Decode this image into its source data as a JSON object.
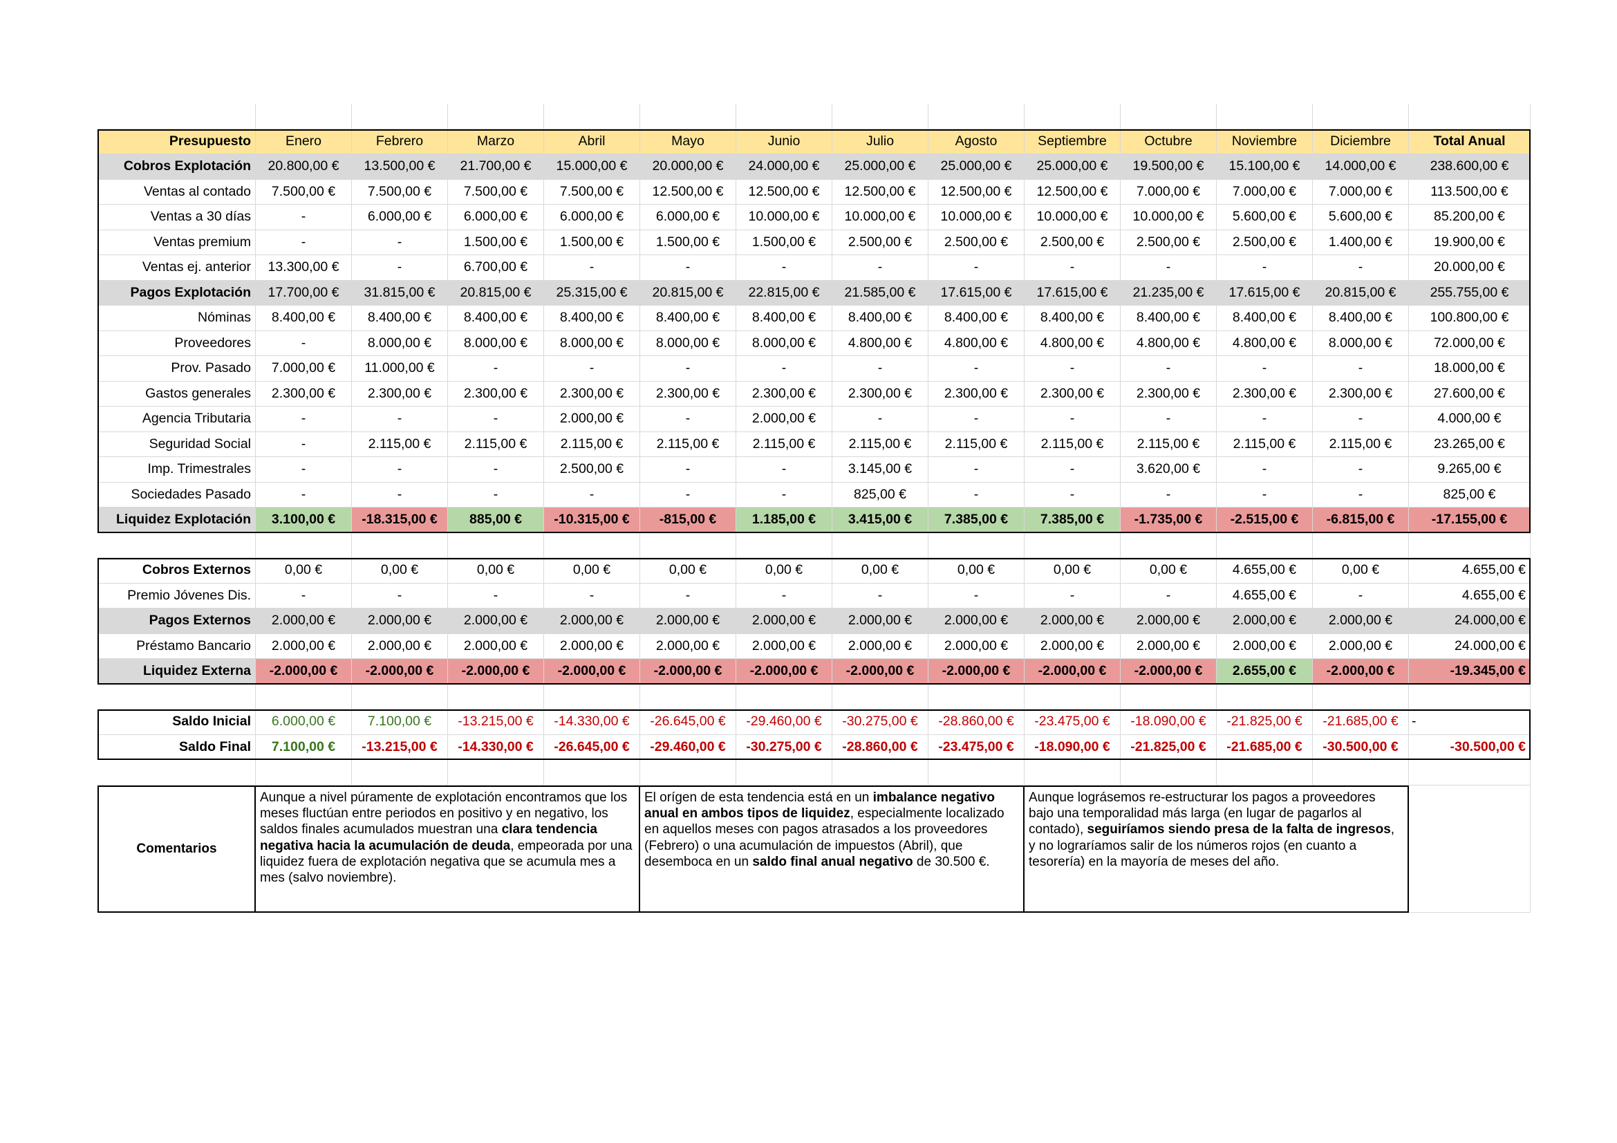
{
  "months": [
    "Enero",
    "Febrero",
    "Marzo",
    "Abril",
    "Mayo",
    "Junio",
    "Julio",
    "Agosto",
    "Septiembre",
    "Octubre",
    "Noviembre",
    "Diciembre"
  ],
  "header": {
    "label": "Presupuesto",
    "total_label": "Total Anual"
  },
  "explotacion": [
    {
      "key": "cobros",
      "label": "Cobros Explotación",
      "style": "section",
      "values": [
        "20.800,00 €",
        "13.500,00 €",
        "21.700,00 €",
        "15.000,00 €",
        "20.000,00 €",
        "24.000,00 €",
        "25.000,00 €",
        "25.000,00 €",
        "25.000,00 €",
        "19.500,00 €",
        "15.100,00 €",
        "14.000,00 €"
      ],
      "total": "238.600,00 €"
    },
    {
      "key": "ventas-contado",
      "label": "Ventas al contado",
      "style": "item",
      "values": [
        "7.500,00 €",
        "7.500,00 €",
        "7.500,00 €",
        "7.500,00 €",
        "12.500,00 €",
        "12.500,00 €",
        "12.500,00 €",
        "12.500,00 €",
        "12.500,00 €",
        "7.000,00 €",
        "7.000,00 €",
        "7.000,00 €"
      ],
      "total": "113.500,00 €"
    },
    {
      "key": "ventas-30",
      "label": "Ventas a 30 días",
      "style": "item",
      "values": [
        "-",
        "6.000,00 €",
        "6.000,00 €",
        "6.000,00 €",
        "6.000,00 €",
        "10.000,00 €",
        "10.000,00 €",
        "10.000,00 €",
        "10.000,00 €",
        "10.000,00 €",
        "5.600,00 €",
        "5.600,00 €"
      ],
      "total": "85.200,00 €"
    },
    {
      "key": "ventas-premium",
      "label": "Ventas premium",
      "style": "item",
      "values": [
        "-",
        "-",
        "1.500,00 €",
        "1.500,00 €",
        "1.500,00 €",
        "1.500,00 €",
        "2.500,00 €",
        "2.500,00 €",
        "2.500,00 €",
        "2.500,00 €",
        "2.500,00 €",
        "1.400,00 €"
      ],
      "total": "19.900,00 €"
    },
    {
      "key": "ventas-anterior",
      "label": "Ventas ej. anterior",
      "style": "item",
      "values": [
        "13.300,00 €",
        "-",
        "6.700,00 €",
        "-",
        "-",
        "-",
        "-",
        "-",
        "-",
        "-",
        "-",
        "-"
      ],
      "total": "20.000,00 €"
    },
    {
      "key": "pagos",
      "label": "Pagos Explotación",
      "style": "section",
      "values": [
        "17.700,00 €",
        "31.815,00 €",
        "20.815,00 €",
        "25.315,00 €",
        "20.815,00 €",
        "22.815,00 €",
        "21.585,00 €",
        "17.615,00 €",
        "17.615,00 €",
        "21.235,00 €",
        "17.615,00 €",
        "20.815,00 €"
      ],
      "total": "255.755,00 €"
    },
    {
      "key": "nominas",
      "label": "Nóminas",
      "style": "item",
      "values": [
        "8.400,00 €",
        "8.400,00 €",
        "8.400,00 €",
        "8.400,00 €",
        "8.400,00 €",
        "8.400,00 €",
        "8.400,00 €",
        "8.400,00 €",
        "8.400,00 €",
        "8.400,00 €",
        "8.400,00 €",
        "8.400,00 €"
      ],
      "total": "100.800,00 €"
    },
    {
      "key": "proveedores",
      "label": "Proveedores",
      "style": "item",
      "values": [
        "-",
        "8.000,00 €",
        "8.000,00 €",
        "8.000,00 €",
        "8.000,00 €",
        "8.000,00 €",
        "4.800,00 €",
        "4.800,00 €",
        "4.800,00 €",
        "4.800,00 €",
        "4.800,00 €",
        "8.000,00 €"
      ],
      "total": "72.000,00 €"
    },
    {
      "key": "prov-pasado",
      "label": "Prov. Pasado",
      "style": "item",
      "values": [
        "7.000,00 €",
        "11.000,00 €",
        "-",
        "-",
        "-",
        "-",
        "-",
        "-",
        "-",
        "-",
        "-",
        "-"
      ],
      "total": "18.000,00 €"
    },
    {
      "key": "gastos-generales",
      "label": "Gastos generales",
      "style": "item",
      "values": [
        "2.300,00 €",
        "2.300,00 €",
        "2.300,00 €",
        "2.300,00 €",
        "2.300,00 €",
        "2.300,00 €",
        "2.300,00 €",
        "2.300,00 €",
        "2.300,00 €",
        "2.300,00 €",
        "2.300,00 €",
        "2.300,00 €"
      ],
      "total": "27.600,00 €"
    },
    {
      "key": "agencia-tributaria",
      "label": "Agencia Tributaria",
      "style": "item",
      "values": [
        "-",
        "-",
        "-",
        "2.000,00 €",
        "-",
        "2.000,00 €",
        "-",
        "-",
        "-",
        "-",
        "-",
        "-"
      ],
      "total": "4.000,00 €"
    },
    {
      "key": "seguridad-social",
      "label": "Seguridad Social",
      "style": "item",
      "values": [
        "-",
        "2.115,00 €",
        "2.115,00 €",
        "2.115,00 €",
        "2.115,00 €",
        "2.115,00 €",
        "2.115,00 €",
        "2.115,00 €",
        "2.115,00 €",
        "2.115,00 €",
        "2.115,00 €",
        "2.115,00 €"
      ],
      "total": "23.265,00 €"
    },
    {
      "key": "imp-trimestrales",
      "label": "Imp. Trimestrales",
      "style": "item",
      "values": [
        "-",
        "-",
        "-",
        "2.500,00 €",
        "-",
        "-",
        "3.145,00 €",
        "-",
        "-",
        "3.620,00 €",
        "-",
        "-"
      ],
      "total": "9.265,00 €"
    },
    {
      "key": "sociedades-pasado",
      "label": "Sociedades Pasado",
      "style": "item",
      "values": [
        "-",
        "-",
        "-",
        "-",
        "-",
        "-",
        "825,00 €",
        "-",
        "-",
        "-",
        "-",
        "-"
      ],
      "total": "825,00 €"
    },
    {
      "key": "liquidez-explotacion",
      "label": "Liquidez Explotación",
      "style": "result",
      "values": [
        "3.100,00 €",
        "-18.315,00 €",
        "885,00 €",
        "-10.315,00 €",
        "-815,00 €",
        "1.185,00 €",
        "3.415,00 €",
        "7.385,00 €",
        "7.385,00 €",
        "-1.735,00 €",
        "-2.515,00 €",
        "-6.815,00 €"
      ],
      "total": "-17.155,00 €",
      "signs": [
        "pos",
        "neg",
        "pos",
        "neg",
        "neg",
        "pos",
        "pos",
        "pos",
        "pos",
        "neg",
        "neg",
        "neg"
      ],
      "total_sign": "neg"
    }
  ],
  "externos": [
    {
      "key": "cobros-externos",
      "label": "Cobros Externos",
      "style": "section-white",
      "values": [
        "0,00 €",
        "0,00 €",
        "0,00 €",
        "0,00 €",
        "0,00 €",
        "0,00 €",
        "0,00 €",
        "0,00 €",
        "0,00 €",
        "0,00 €",
        "4.655,00 €",
        "0,00 €"
      ],
      "total": "4.655,00 €"
    },
    {
      "key": "premio-jovenes",
      "label": "Premio Jóvenes Dis.",
      "style": "item",
      "values": [
        "-",
        "-",
        "-",
        "-",
        "-",
        "-",
        "-",
        "-",
        "-",
        "-",
        "4.655,00 €",
        "-"
      ],
      "total": "4.655,00 €"
    },
    {
      "key": "pagos-externos",
      "label": "Pagos Externos",
      "style": "section",
      "values": [
        "2.000,00 €",
        "2.000,00 €",
        "2.000,00 €",
        "2.000,00 €",
        "2.000,00 €",
        "2.000,00 €",
        "2.000,00 €",
        "2.000,00 €",
        "2.000,00 €",
        "2.000,00 €",
        "2.000,00 €",
        "2.000,00 €"
      ],
      "total": "24.000,00 €"
    },
    {
      "key": "prestamo-bancario",
      "label": "Préstamo Bancario",
      "style": "item",
      "values": [
        "2.000,00 €",
        "2.000,00 €",
        "2.000,00 €",
        "2.000,00 €",
        "2.000,00 €",
        "2.000,00 €",
        "2.000,00 €",
        "2.000,00 €",
        "2.000,00 €",
        "2.000,00 €",
        "2.000,00 €",
        "2.000,00 €"
      ],
      "total": "24.000,00 €"
    },
    {
      "key": "liquidez-externa",
      "label": "Liquidez Externa",
      "style": "result",
      "values": [
        "-2.000,00 €",
        "-2.000,00 €",
        "-2.000,00 €",
        "-2.000,00 €",
        "-2.000,00 €",
        "-2.000,00 €",
        "-2.000,00 €",
        "-2.000,00 €",
        "-2.000,00 €",
        "-2.000,00 €",
        "2.655,00 €",
        "-2.000,00 €"
      ],
      "total": "-19.345,00 €",
      "signs": [
        "neg",
        "neg",
        "neg",
        "neg",
        "neg",
        "neg",
        "neg",
        "neg",
        "neg",
        "neg",
        "pos",
        "neg"
      ],
      "total_sign": "neg"
    }
  ],
  "saldos": [
    {
      "key": "saldo-inicial",
      "label": "Saldo Inicial",
      "style": "saldo",
      "values": [
        "6.000,00 €",
        "7.100,00 €",
        "-13.215,00 €",
        "-14.330,00 €",
        "-26.645,00 €",
        "-29.460,00 €",
        "-30.275,00 €",
        "-28.860,00 €",
        "-23.475,00 €",
        "-18.090,00 €",
        "-21.825,00 €",
        "-21.685,00 €"
      ],
      "total": "-",
      "signs": [
        "pos",
        "pos",
        "neg",
        "neg",
        "neg",
        "neg",
        "neg",
        "neg",
        "neg",
        "neg",
        "neg",
        "neg"
      ],
      "total_sign": "none"
    },
    {
      "key": "saldo-final",
      "label": "Saldo Final",
      "style": "saldo-bold",
      "values": [
        "7.100,00 €",
        "-13.215,00 €",
        "-14.330,00 €",
        "-26.645,00 €",
        "-29.460,00 €",
        "-30.275,00 €",
        "-28.860,00 €",
        "-23.475,00 €",
        "-18.090,00 €",
        "-21.825,00 €",
        "-21.685,00 €",
        "-30.500,00 €"
      ],
      "total": "-30.500,00 €",
      "signs": [
        "pos",
        "neg",
        "neg",
        "neg",
        "neg",
        "neg",
        "neg",
        "neg",
        "neg",
        "neg",
        "neg",
        "neg"
      ],
      "total_sign": "neg"
    }
  ],
  "comentarios": {
    "label": "Comentarios",
    "blocks": [
      [
        {
          "t": "Aunque a nivel púramente de explotación encontramos que los meses fluctúan entre periodos en positivo y en negativo, los saldos finales acumulados muestran una ",
          "b": false
        },
        {
          "t": "clara tendencia negativa hacia la acumulación de deuda",
          "b": true
        },
        {
          "t": ", empeorada por una liquidez fuera de explotación negativa que se acumula mes a mes (salvo noviembre).",
          "b": false
        }
      ],
      [
        {
          "t": "El orígen de esta tendencia está en un ",
          "b": false
        },
        {
          "t": "imbalance negativo anual en ambos tipos de liquidez",
          "b": true
        },
        {
          "t": ", especialmente localizado en aquellos meses con pagos atrasados a los proveedores (Febrero) o una acumulación de impuestos (Abril), que desemboca en un ",
          "b": false
        },
        {
          "t": "saldo final anual negativo",
          "b": true
        },
        {
          "t": " de 30.500 €.",
          "b": false
        }
      ],
      [
        {
          "t": "Aunque lográsemos re-estructurar los pagos a proveedores bajo una temporalidad más larga (en lugar de pagarlos al contado), ",
          "b": false
        },
        {
          "t": "seguiríamos siendo presa de la falta de ingresos",
          "b": true
        },
        {
          "t": ", y no lograríamos salir de los números rojos (en cuanto a tesorería) en la mayoría de meses del año.",
          "b": false
        }
      ]
    ]
  }
}
